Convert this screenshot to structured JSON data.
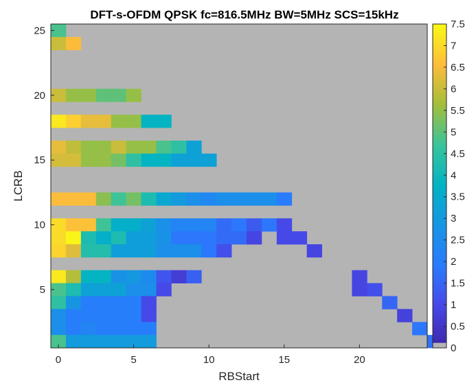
{
  "chart_data": {
    "type": "heatmap",
    "title": "DFT-s-OFDM QPSK fc=816.5MHz BW=5MHz SCS=15kHz",
    "xlabel": "RBStart",
    "ylabel": "LCRB",
    "x_ticks": [
      "0",
      "5",
      "10",
      "15",
      "20"
    ],
    "y_ticks": [
      "5",
      "10",
      "15",
      "20",
      "25"
    ],
    "xlim": [
      0,
      24
    ],
    "ylim": [
      1,
      25
    ],
    "colorbar": {
      "ticks": [
        "0",
        "0.5",
        "1",
        "1.5",
        "2",
        "2.5",
        "3",
        "3.5",
        "4",
        "4.5",
        "5",
        "5.5",
        "6",
        "6.5",
        "7",
        "7.5"
      ],
      "range": [
        0,
        7.5
      ],
      "colormap": "parula",
      "zero_color": "#b4b4b4"
    },
    "background_color": "#b4b4b4",
    "rows": [
      {
        "lcrb": 25,
        "values": [
          4.8
        ]
      },
      {
        "lcrb": 24,
        "values": [
          6.0,
          6.5
        ]
      },
      {
        "lcrb": 20,
        "values": [
          6.0,
          5.5,
          5.5,
          5.0,
          5.0,
          5.5
        ]
      },
      {
        "lcrb": 18,
        "values": [
          7.2,
          6.8,
          6.3,
          6.3,
          5.5,
          5.5,
          3.8,
          3.8
        ]
      },
      {
        "lcrb": 16,
        "values": [
          6.3,
          5.9,
          5.5,
          5.5,
          6.0,
          5.5,
          5.5,
          4.8,
          4.5,
          3.2
        ]
      },
      {
        "lcrb": 15,
        "values": [
          6.1,
          6.1,
          5.5,
          5.5,
          5.2,
          4.5,
          3.8,
          3.8,
          3.2,
          3.2,
          3.2
        ]
      },
      {
        "lcrb": 12,
        "values": [
          6.5,
          6.5,
          6.5,
          5.4,
          4.7,
          5.2,
          4.2,
          3.4,
          3.0,
          2.6,
          2.3,
          2.6,
          2.6,
          2.6,
          2.6,
          1.9
        ]
      },
      {
        "lcrb": 10,
        "values": [
          7.0,
          6.6,
          6.6,
          4.7,
          3.6,
          3.6,
          3.2,
          2.6,
          2.2,
          2.2,
          2.2,
          1.6,
          1.8,
          1.3,
          1.8,
          1.0
        ]
      },
      {
        "lcrb": 9,
        "values": [
          7.0,
          7.4,
          4.2,
          3.6,
          4.2,
          3.1,
          3.1,
          2.7,
          1.8,
          1.8,
          1.8,
          1.6,
          1.6,
          0.9,
          null,
          1.0,
          1.0
        ]
      },
      {
        "lcrb": 8,
        "values": [
          6.9,
          6.2,
          4.3,
          4.3,
          3.1,
          3.1,
          3.1,
          2.6,
          2.6,
          2.6,
          1.8,
          1.1,
          null,
          null,
          null,
          null,
          null,
          0.9
        ]
      },
      {
        "lcrb": 6,
        "values": [
          7.2,
          5.8,
          3.8,
          3.8,
          2.7,
          2.9,
          2.4,
          1.2,
          0.7,
          1.4,
          null,
          null,
          null,
          null,
          null,
          null,
          null,
          null,
          null,
          null,
          0.9
        ]
      },
      {
        "lcrb": 5,
        "values": [
          4.8,
          4.2,
          3.2,
          3.2,
          3.2,
          2.6,
          2.6,
          1.0,
          null,
          null,
          null,
          null,
          null,
          null,
          null,
          null,
          null,
          null,
          null,
          null,
          0.9,
          1.1
        ]
      },
      {
        "lcrb": 4,
        "values": [
          4.5,
          2.8,
          2.0,
          2.0,
          2.0,
          2.0,
          1.0,
          null,
          null,
          null,
          null,
          null,
          null,
          null,
          null,
          null,
          null,
          null,
          null,
          null,
          null,
          null,
          1.5
        ]
      },
      {
        "lcrb": 3,
        "values": [
          2.6,
          2.0,
          2.0,
          2.0,
          2.0,
          2.0,
          1.0,
          null,
          null,
          null,
          null,
          null,
          null,
          null,
          null,
          null,
          null,
          null,
          null,
          null,
          null,
          null,
          null,
          0.8
        ]
      },
      {
        "lcrb": 2,
        "values": [
          2.6,
          2.0,
          2.2,
          2.0,
          2.0,
          2.0,
          2.0,
          null,
          null,
          null,
          null,
          null,
          null,
          null,
          null,
          null,
          null,
          null,
          null,
          null,
          null,
          null,
          null,
          null,
          1.8
        ]
      },
      {
        "lcrb": 1,
        "values": [
          4.8,
          3.0,
          3.0,
          3.0,
          3.0,
          3.0,
          3.0,
          null,
          null,
          null,
          null,
          null,
          null,
          null,
          null,
          null,
          null,
          null,
          null,
          null,
          null,
          null,
          null,
          null,
          null,
          1.7
        ]
      }
    ]
  }
}
